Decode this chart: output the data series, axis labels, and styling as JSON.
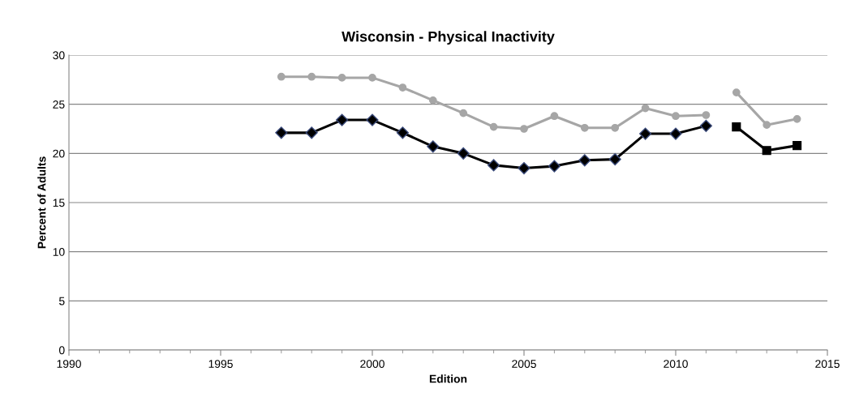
{
  "chart_data": {
    "type": "line",
    "title": "Wisconsin - Physical Inactivity",
    "xlabel": "Edition",
    "ylabel": "Percent of Adults",
    "xlim": [
      1990,
      2015
    ],
    "xticks": [
      1990,
      1995,
      2000,
      2005,
      2010,
      2015
    ],
    "ylim": [
      0,
      30
    ],
    "yticks": [
      0,
      5,
      10,
      15,
      20,
      25,
      30
    ],
    "grid": "y",
    "line_style": "solid",
    "series": [
      {
        "color": "#a6a6a6",
        "marker": "circle",
        "x": [
          1997,
          1998,
          1999,
          2000,
          2001,
          2002,
          2003,
          2004,
          2005,
          2006,
          2007,
          2008,
          2009,
          2010,
          2011
        ],
        "values": [
          27.8,
          27.8,
          27.7,
          27.7,
          26.7,
          25.4,
          24.1,
          22.7,
          22.5,
          23.8,
          22.6,
          22.6,
          24.6,
          23.8,
          23.9
        ]
      },
      {
        "color": "#a6a6a6",
        "marker": "circle",
        "x": [
          2012,
          2013,
          2014
        ],
        "values": [
          26.2,
          22.9,
          23.5
        ]
      },
      {
        "color": "#000000",
        "marker": "diamond",
        "x": [
          1997,
          1998,
          1999,
          2000,
          2001,
          2002,
          2003,
          2004,
          2005,
          2006,
          2007,
          2008,
          2009,
          2010,
          2011
        ],
        "values": [
          22.1,
          22.1,
          23.4,
          23.4,
          22.1,
          20.7,
          20.0,
          18.8,
          18.5,
          18.7,
          19.3,
          19.4,
          22.0,
          22.0,
          22.8
        ]
      },
      {
        "color": "#000000",
        "marker": "square",
        "x": [
          2012,
          2013,
          2014
        ],
        "values": [
          22.7,
          20.3,
          20.8
        ]
      }
    ]
  }
}
